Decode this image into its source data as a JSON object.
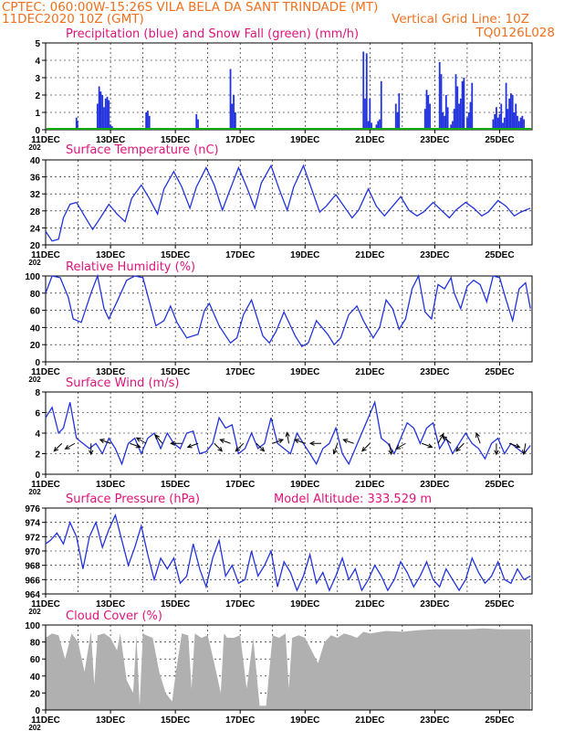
{
  "header": {
    "line1": "CPTEC:   060:00W-15:26S   VILA BELA DA SANT TRINDADE (MT)",
    "line2_left": "11DEC2020 10Z (GMT)",
    "line2_right": "Vertical Grid Line: 10Z",
    "code": "TQ0126L028"
  },
  "colors": {
    "header": "#f0701e",
    "title": "#e0137a",
    "line": "#2233dd",
    "snow": "#11aa11",
    "cloud": "#b0b0b0",
    "wind_arrow": "#000000"
  },
  "x_tick_labels": [
    "11DEC",
    "13DEC",
    "15DEC",
    "17DEC",
    "19DEC",
    "21DEC",
    "23DEC",
    "25DEC"
  ],
  "year_fragment": "202",
  "chart_data": [
    {
      "id": "precip",
      "type": "bar",
      "title": "Precipitation (blue) and Snow Fall (green) (mm/h)",
      "ylim": [
        0,
        5
      ],
      "yticks": [
        "0",
        "1",
        "2",
        "3",
        "4",
        "5"
      ],
      "x_days": [
        0.95,
        0.98,
        1.6,
        1.65,
        1.7,
        1.75,
        1.8,
        1.85,
        1.9,
        1.95,
        2.0,
        2.05,
        3.1,
        3.15,
        3.2,
        4.65,
        4.7,
        5.7,
        5.75,
        5.8,
        5.85,
        9.8,
        9.85,
        9.9,
        9.95,
        10.0,
        10.05,
        10.2,
        10.25,
        10.3,
        10.35,
        10.8,
        10.85,
        10.9,
        11.7,
        11.75,
        11.8,
        11.85,
        12.15,
        12.2,
        12.25,
        12.3,
        12.35,
        12.4,
        12.5,
        12.55,
        12.6,
        12.65,
        12.7,
        12.75,
        12.8,
        12.85,
        12.9,
        13.0,
        13.05,
        13.1,
        13.15,
        13.8,
        13.85,
        13.9,
        13.95,
        14.0,
        14.05,
        14.1,
        14.15,
        14.2,
        14.25,
        14.3,
        14.35,
        14.4,
        14.45,
        14.5,
        14.55,
        14.6,
        14.65,
        14.7,
        14.75
      ],
      "values": [
        0.7,
        0.5,
        1.5,
        2.5,
        2.2,
        2.0,
        1.3,
        1.8,
        1.9,
        1.7,
        0.3,
        0.2,
        1.0,
        1.1,
        0.8,
        0.9,
        0.6,
        3.5,
        1.5,
        2.0,
        1.0,
        4.5,
        1.8,
        4.4,
        0.5,
        1.8,
        0.4,
        0.3,
        0.5,
        0.6,
        2.8,
        1.5,
        1.0,
        2.1,
        1.2,
        2.3,
        2.0,
        1.5,
        3.9,
        3.2,
        1.0,
        0.8,
        2.0,
        1.3,
        0.3,
        0.5,
        1.2,
        3.2,
        2.5,
        1.5,
        1.8,
        2.8,
        3.0,
        0.7,
        1.0,
        1.6,
        2.7,
        0.6,
        0.9,
        1.3,
        0.7,
        0.9,
        1.5,
        0.4,
        0.7,
        2.7,
        1.2,
        1.8,
        2.1,
        2.0,
        1.0,
        1.5,
        0.8,
        0.5,
        0.7,
        0.8,
        0.6
      ],
      "snow": 0
    },
    {
      "id": "temperature",
      "type": "line",
      "title": "Surface Temperature (nC)",
      "ylim": [
        18,
        40
      ],
      "yticks": [
        "20",
        "24",
        "28",
        "32",
        "36",
        "40"
      ],
      "x_days": [
        0.0,
        0.2,
        0.4,
        0.55,
        0.75,
        0.95,
        1.2,
        1.45,
        1.65,
        1.95,
        2.2,
        2.45,
        2.65,
        2.95,
        3.2,
        3.45,
        3.65,
        3.95,
        4.2,
        4.45,
        4.65,
        4.95,
        5.2,
        5.45,
        5.65,
        5.95,
        6.2,
        6.45,
        6.65,
        6.95,
        7.2,
        7.45,
        7.65,
        7.95,
        8.2,
        8.45,
        8.65,
        8.95,
        9.2,
        9.45,
        9.65,
        9.95,
        10.2,
        10.45,
        10.65,
        10.95,
        11.2,
        11.45,
        11.65,
        11.95,
        12.2,
        12.45,
        12.65,
        12.95,
        13.2,
        13.45,
        13.65,
        13.95,
        14.2,
        14.45,
        14.65,
        14.95
      ],
      "values": [
        21.5,
        19.0,
        19.5,
        25.0,
        28.5,
        29.0,
        25.5,
        22.0,
        24.5,
        28.5,
        26.0,
        24.0,
        30.0,
        33.5,
        30.0,
        26.0,
        32.5,
        37.0,
        33.0,
        27.5,
        33.0,
        38.0,
        33.5,
        27.0,
        31.5,
        38.0,
        33.0,
        27.5,
        34.0,
        38.5,
        32.5,
        27.0,
        33.0,
        38.5,
        32.5,
        26.5,
        28.0,
        31.0,
        28.0,
        25.0,
        27.0,
        32.5,
        28.0,
        25.5,
        27.5,
        30.5,
        27.0,
        25.5,
        26.5,
        29.0,
        27.0,
        25.0,
        27.0,
        29.0,
        27.5,
        25.5,
        26.5,
        29.5,
        28.0,
        25.5,
        26.5,
        27.5
      ]
    },
    {
      "id": "humidity",
      "type": "line",
      "title": "Relative Humidity (%)",
      "ylim": [
        0,
        100
      ],
      "yticks": [
        "0",
        "20",
        "40",
        "60",
        "80",
        "100"
      ],
      "x_days": [
        0.0,
        0.2,
        0.45,
        0.7,
        0.85,
        1.1,
        1.4,
        1.6,
        1.8,
        1.95,
        2.2,
        2.5,
        2.75,
        3.0,
        3.4,
        3.65,
        3.85,
        4.05,
        4.35,
        4.7,
        4.9,
        5.05,
        5.35,
        5.7,
        5.9,
        6.1,
        6.35,
        6.7,
        6.9,
        7.1,
        7.35,
        7.7,
        7.9,
        8.1,
        8.35,
        8.7,
        8.9,
        9.1,
        9.35,
        9.6,
        9.8,
        10.1,
        10.3,
        10.5,
        10.7,
        10.9,
        11.1,
        11.3,
        11.5,
        11.7,
        11.9,
        12.1,
        12.3,
        12.5,
        12.6,
        12.8,
        13.0,
        13.2,
        13.4,
        13.6,
        13.8,
        14.0,
        14.2,
        14.4,
        14.6,
        14.8,
        14.95
      ],
      "values": [
        80.0,
        100.0,
        98.0,
        75.0,
        50.0,
        46.0,
        80.0,
        100.0,
        62.0,
        50.0,
        70.0,
        95.0,
        100.0,
        98.0,
        42.0,
        48.0,
        65.0,
        46.0,
        28.0,
        32.0,
        60.0,
        68.0,
        42.0,
        22.0,
        28.0,
        55.0,
        72.0,
        30.0,
        22.0,
        35.0,
        58.0,
        30.0,
        18.0,
        22.0,
        48.0,
        32.0,
        20.0,
        28.0,
        55.0,
        65.0,
        48.0,
        28.0,
        40.0,
        72.0,
        62.0,
        38.0,
        50.0,
        85.0,
        100.0,
        58.0,
        50.0,
        90.0,
        85.0,
        98.0,
        80.0,
        62.0,
        88.0,
        95.0,
        90.0,
        70.0,
        100.0,
        98.0,
        72.0,
        48.0,
        85.0,
        92.0,
        62.0
      ]
    },
    {
      "id": "wind",
      "type": "line",
      "title": "Surface Wind (m/s)",
      "ylim": [
        0,
        8
      ],
      "yticks": [
        "0",
        "2",
        "4",
        "6",
        "8"
      ],
      "x_days": [
        0.0,
        0.2,
        0.4,
        0.55,
        0.75,
        0.95,
        1.15,
        1.35,
        1.55,
        1.75,
        1.95,
        2.15,
        2.35,
        2.55,
        2.75,
        2.95,
        3.15,
        3.35,
        3.55,
        3.75,
        3.95,
        4.15,
        4.35,
        4.55,
        4.75,
        4.95,
        5.15,
        5.35,
        5.55,
        5.75,
        5.95,
        6.15,
        6.35,
        6.55,
        6.75,
        6.95,
        7.15,
        7.35,
        7.55,
        7.75,
        7.95,
        8.15,
        8.35,
        8.55,
        8.75,
        8.95,
        9.15,
        9.35,
        9.55,
        9.75,
        9.95,
        10.15,
        10.35,
        10.55,
        10.75,
        10.95,
        11.15,
        11.35,
        11.55,
        11.75,
        11.95,
        12.15,
        12.35,
        12.55,
        12.75,
        12.95,
        13.15,
        13.35,
        13.55,
        13.75,
        13.95,
        14.15,
        14.35,
        14.55,
        14.75,
        14.95
      ],
      "values": [
        5.5,
        6.5,
        4.0,
        4.5,
        7.0,
        3.5,
        3.0,
        2.5,
        3.0,
        2.0,
        3.5,
        2.5,
        1.0,
        3.0,
        3.5,
        2.0,
        3.5,
        4.0,
        2.5,
        4.0,
        3.0,
        2.5,
        4.0,
        4.2,
        2.0,
        2.2,
        3.0,
        5.5,
        4.5,
        4.8,
        2.0,
        2.5,
        4.0,
        2.5,
        3.0,
        5.5,
        3.0,
        2.5,
        2.0,
        4.0,
        3.0,
        2.0,
        1.0,
        2.5,
        3.0,
        4.5,
        2.0,
        1.0,
        2.5,
        4.0,
        5.5,
        7.0,
        3.5,
        3.0,
        2.0,
        3.5,
        5.0,
        4.5,
        3.0,
        4.5,
        5.0,
        2.5,
        3.5,
        2.0,
        3.0,
        4.0,
        3.0,
        2.5,
        1.5,
        3.0,
        3.5,
        2.0,
        3.0,
        2.5,
        2.0,
        2.8
      ],
      "arrows_days": [
        0.5,
        0.9,
        1.4,
        2.0,
        2.6,
        3.1,
        3.6,
        4.2,
        4.7,
        5.2,
        5.7,
        6.1,
        6.5,
        7.0,
        7.5,
        8.0,
        8.5,
        9.0,
        9.5,
        10.0,
        10.6,
        11.1,
        11.6,
        12.1,
        12.5,
        12.9,
        13.4,
        13.9,
        14.3,
        14.8
      ],
      "arrows_dir_deg": [
        135,
        150,
        90,
        200,
        20,
        210,
        230,
        180,
        160,
        45,
        200,
        135,
        45,
        340,
        260,
        200,
        180,
        110,
        200,
        135,
        80,
        150,
        20,
        300,
        220,
        135,
        250,
        90,
        20,
        100
      ]
    },
    {
      "id": "pressure",
      "type": "line",
      "title": "Surface Pressure (hPa)",
      "subtitle": "Model Altitude: 333.529 m",
      "ylim": [
        964,
        976
      ],
      "yticks": [
        "964",
        "966",
        "968",
        "970",
        "972",
        "974",
        "976"
      ],
      "x_days": [
        0.0,
        0.15,
        0.35,
        0.55,
        0.75,
        0.95,
        1.15,
        1.35,
        1.55,
        1.75,
        1.95,
        2.15,
        2.35,
        2.55,
        2.75,
        2.95,
        3.15,
        3.35,
        3.55,
        3.75,
        3.95,
        4.15,
        4.35,
        4.55,
        4.75,
        4.95,
        5.15,
        5.35,
        5.55,
        5.75,
        5.95,
        6.15,
        6.35,
        6.55,
        6.75,
        6.95,
        7.15,
        7.35,
        7.55,
        7.75,
        7.95,
        8.15,
        8.35,
        8.55,
        8.75,
        8.95,
        9.15,
        9.35,
        9.55,
        9.75,
        9.95,
        10.15,
        10.35,
        10.55,
        10.75,
        10.95,
        11.15,
        11.35,
        11.55,
        11.75,
        11.95,
        12.15,
        12.35,
        12.55,
        12.75,
        12.95,
        13.15,
        13.35,
        13.55,
        13.75,
        13.95,
        14.15,
        14.35,
        14.55,
        14.75,
        14.95
      ],
      "values": [
        971.0,
        971.5,
        972.5,
        971.0,
        974.0,
        972.0,
        967.5,
        972.0,
        974.0,
        970.5,
        973.0,
        975.0,
        971.5,
        968.0,
        970.5,
        973.5,
        969.5,
        966.0,
        969.0,
        967.5,
        969.0,
        965.5,
        966.5,
        971.0,
        967.5,
        965.0,
        969.0,
        971.5,
        966.5,
        968.0,
        965.5,
        966.0,
        970.0,
        966.5,
        968.0,
        970.0,
        965.0,
        968.5,
        967.0,
        964.5,
        966.5,
        969.5,
        965.5,
        967.0,
        964.5,
        966.5,
        969.0,
        966.0,
        967.5,
        964.5,
        966.0,
        968.0,
        966.5,
        964.5,
        966.0,
        968.5,
        967.0,
        965.0,
        966.5,
        968.5,
        966.0,
        965.0,
        967.5,
        966.0,
        964.5,
        966.0,
        969.0,
        967.0,
        965.5,
        966.5,
        968.5,
        966.0,
        965.5,
        967.5,
        966.0,
        966.5
      ]
    },
    {
      "id": "cloud",
      "type": "area",
      "title": "Cloud Cover (%)",
      "ylim": [
        0,
        100
      ],
      "yticks": [
        "0",
        "20",
        "40",
        "60",
        "80",
        "100"
      ],
      "x_days": [
        0.0,
        0.2,
        0.4,
        0.6,
        0.8,
        1.0,
        1.2,
        1.4,
        1.5,
        1.6,
        1.8,
        2.0,
        2.2,
        2.3,
        2.5,
        2.7,
        2.8,
        2.9,
        3.0,
        3.1,
        3.3,
        3.5,
        3.7,
        3.9,
        4.0,
        4.2,
        4.4,
        4.5,
        4.6,
        4.8,
        5.0,
        5.2,
        5.4,
        5.5,
        5.6,
        5.8,
        6.0,
        6.2,
        6.4,
        6.6,
        6.8,
        7.0,
        7.2,
        7.4,
        7.5,
        7.6,
        7.8,
        8.0,
        8.2,
        8.4,
        8.6,
        8.8,
        9.0,
        9.2,
        9.4,
        9.6,
        9.8,
        10.0,
        10.5,
        11.0,
        11.5,
        12.0,
        12.5,
        13.0,
        13.5,
        14.0,
        14.5,
        14.95
      ],
      "values": [
        85.0,
        90.0,
        88.0,
        60.0,
        90.0,
        80.0,
        45.0,
        92.0,
        30.0,
        88.0,
        90.0,
        85.0,
        70.0,
        90.0,
        35.0,
        20.0,
        88.0,
        5.0,
        90.0,
        88.0,
        85.0,
        45.0,
        20.0,
        10.0,
        40.0,
        90.0,
        88.0,
        25.0,
        90.0,
        85.0,
        88.0,
        55.0,
        20.0,
        90.0,
        85.0,
        85.0,
        88.0,
        25.0,
        85.0,
        5.0,
        5.0,
        88.0,
        85.0,
        90.0,
        25.0,
        85.0,
        88.0,
        85.0,
        70.0,
        55.0,
        80.0,
        88.0,
        85.0,
        90.0,
        88.0,
        85.0,
        92.0,
        90.0,
        93.0,
        92.0,
        94.0,
        95.0,
        95.0,
        95.0,
        96.0,
        95.0,
        95.0,
        95.0
      ]
    }
  ]
}
